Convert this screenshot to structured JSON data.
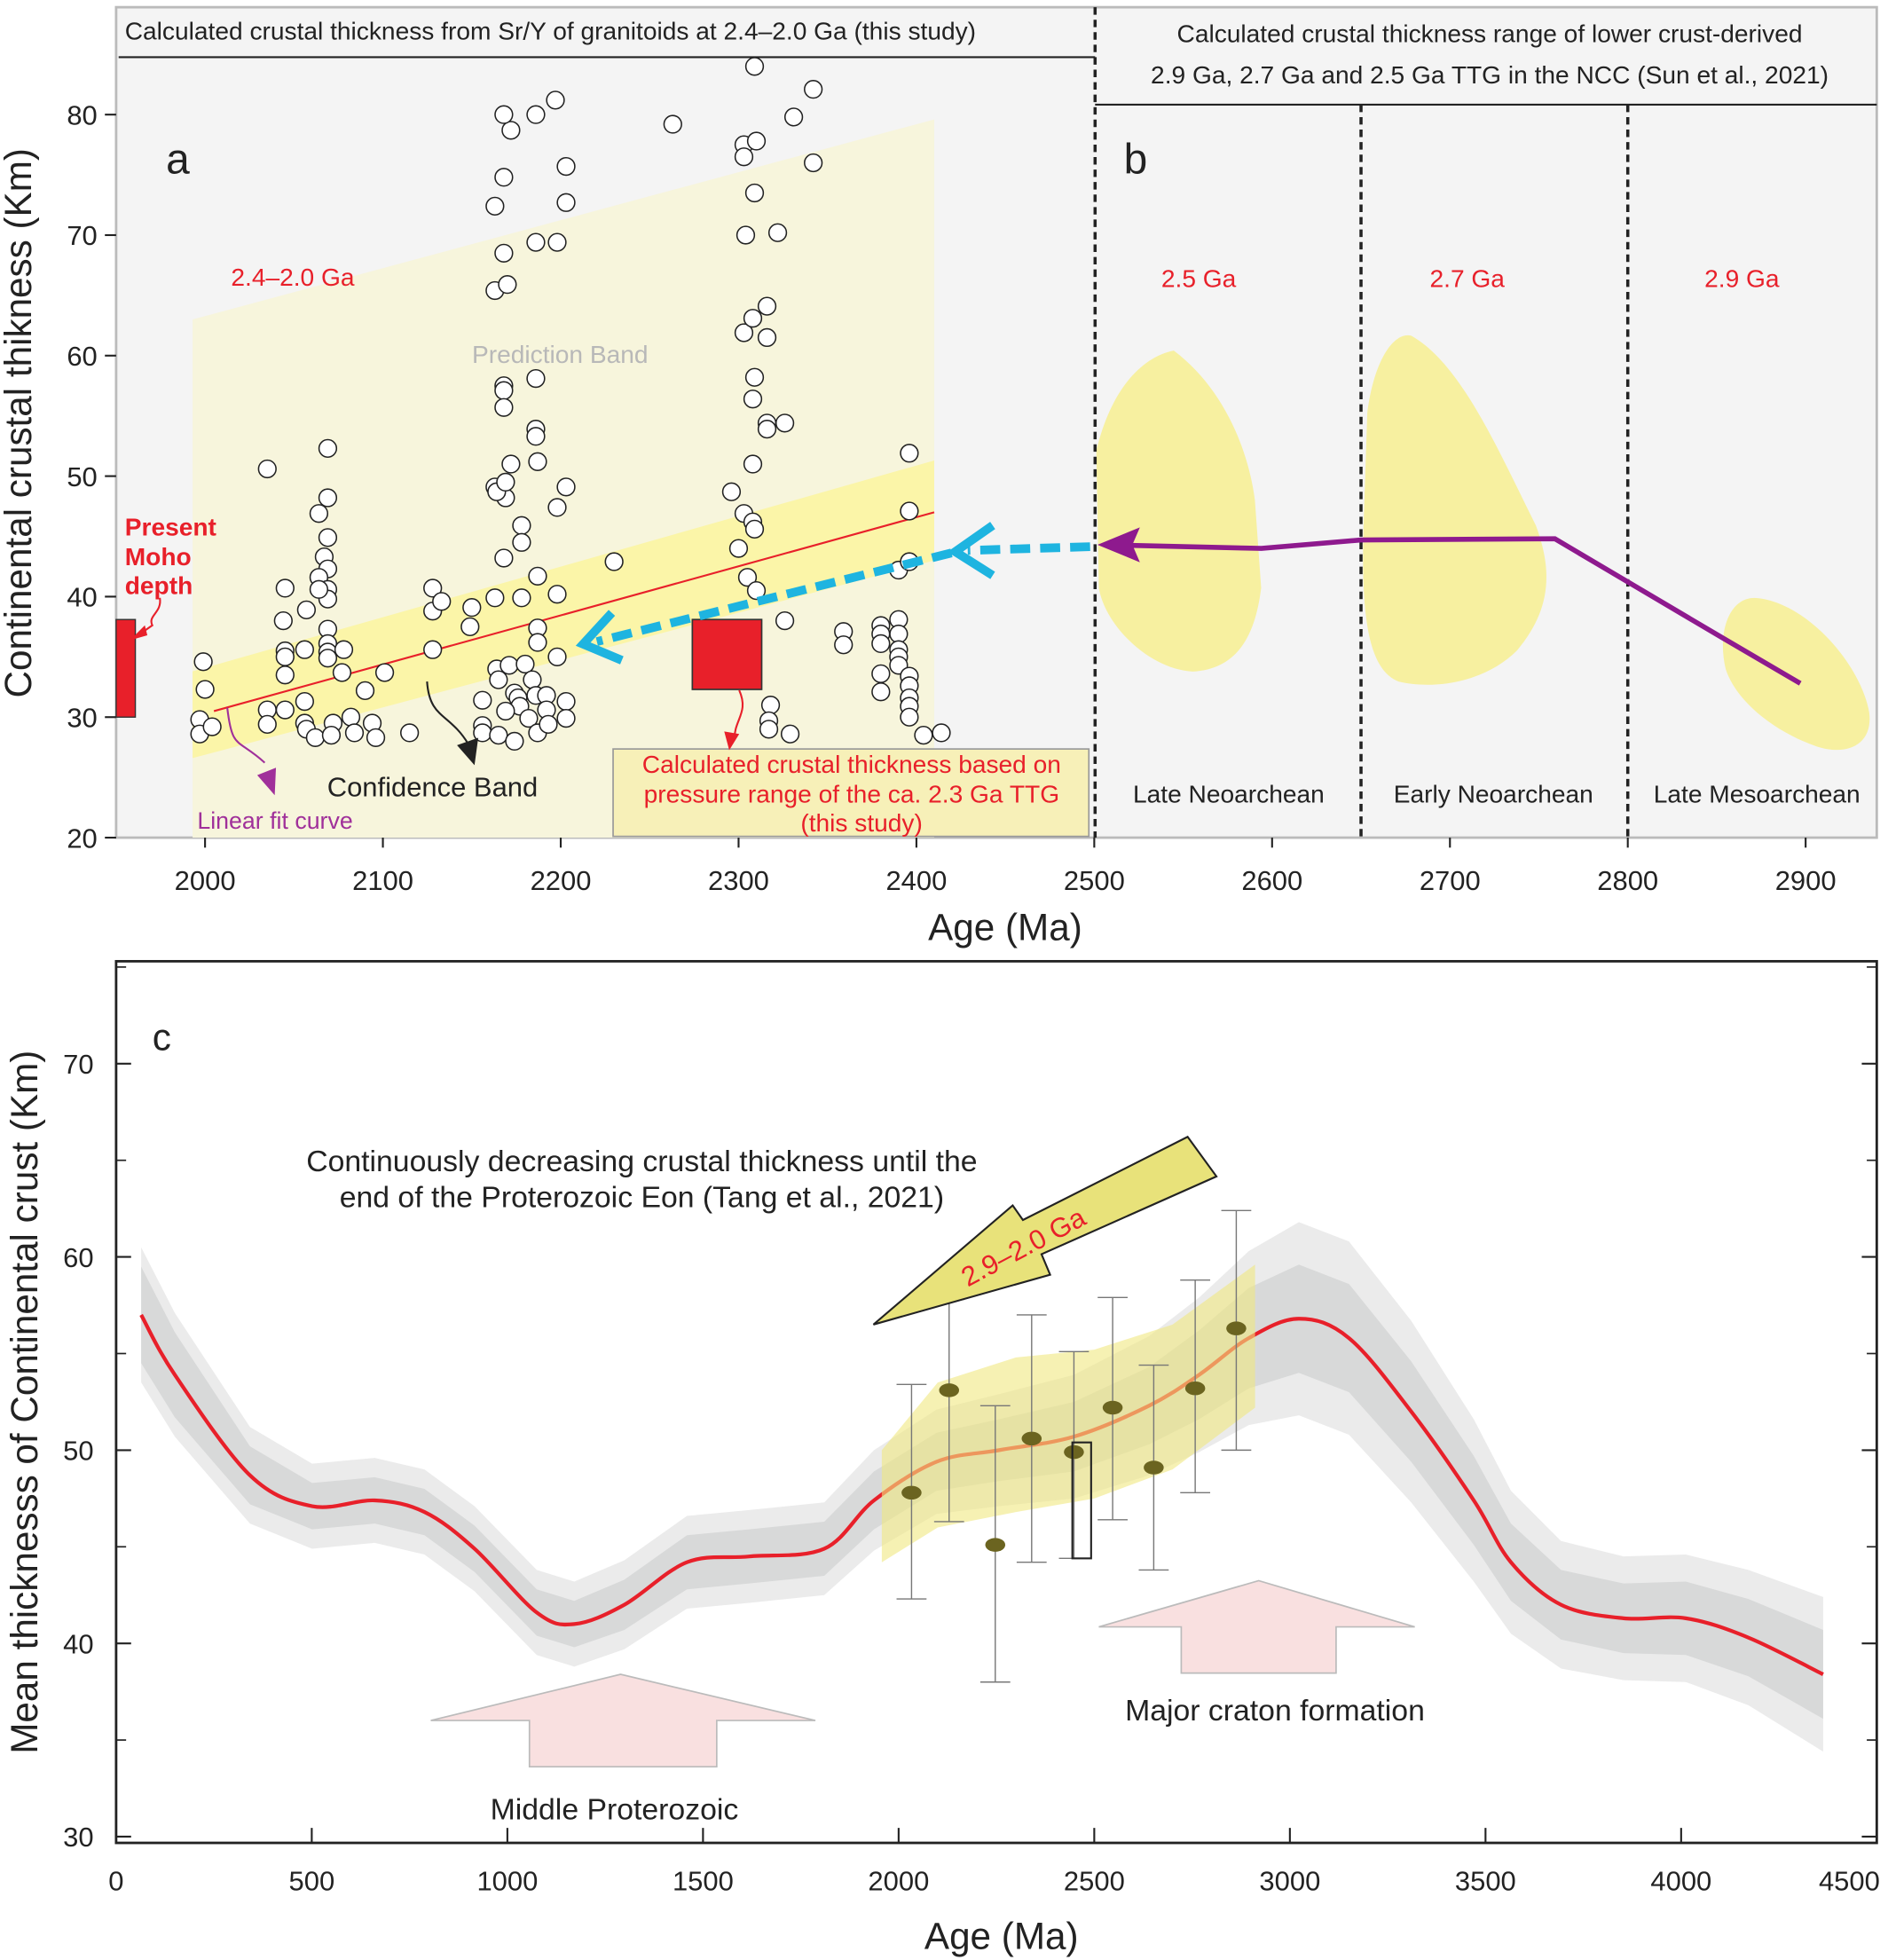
{
  "chart_data": [
    {
      "panel": "a",
      "type": "scatter",
      "header": "Calculated crustal thickness from Sr/Y of granitoids at 2.4–2.0 Ga (this study)",
      "panel_label": "a",
      "ylabel": "Continental crustal thikness (Km)",
      "xlabel": "Age (Ma)",
      "xlim": [
        1950,
        2940
      ],
      "ylim": [
        20,
        85
      ],
      "xticks": [
        2000,
        2100,
        2200,
        2300,
        2400,
        2500,
        2600,
        2700,
        2800,
        2900
      ],
      "yticks": [
        20,
        30,
        40,
        50,
        60,
        70,
        80
      ],
      "points": [
        [
          2035,
          50.6
        ],
        [
          2069,
          52.3
        ],
        [
          2069,
          48.2
        ],
        [
          2064,
          46.9
        ],
        [
          2069,
          44.9
        ],
        [
          2067,
          43.3
        ],
        [
          2069,
          42.3
        ],
        [
          2064,
          41.6
        ],
        [
          2069,
          40.6
        ],
        [
          2069,
          39.8
        ],
        [
          2064,
          40.6
        ],
        [
          2069,
          37.3
        ],
        [
          2069,
          36.1
        ],
        [
          2069,
          35.4
        ],
        [
          2069,
          34.9
        ],
        [
          2078,
          35.6
        ],
        [
          2077,
          33.7
        ],
        [
          2045,
          40.7
        ],
        [
          2044,
          38.0
        ],
        [
          2045,
          35.5
        ],
        [
          2045,
          35.0
        ],
        [
          2045,
          33.5
        ],
        [
          2057,
          38.9
        ],
        [
          2056,
          35.6
        ],
        [
          2056,
          31.3
        ],
        [
          2056,
          29.5
        ],
        [
          2057,
          29.0
        ],
        [
          2045,
          30.6
        ],
        [
          2035,
          30.6
        ],
        [
          2035,
          29.4
        ],
        [
          1999,
          34.6
        ],
        [
          2000,
          32.3
        ],
        [
          1997,
          29.8
        ],
        [
          1997,
          28.6
        ],
        [
          2004,
          29.2
        ],
        [
          2062,
          28.3
        ],
        [
          2072,
          29.5
        ],
        [
          2071,
          28.5
        ],
        [
          2082,
          30.0
        ],
        [
          2084,
          28.7
        ],
        [
          2094,
          29.5
        ],
        [
          2096,
          28.3
        ],
        [
          2090,
          32.2
        ],
        [
          2101,
          33.7
        ],
        [
          2115,
          28.7
        ],
        [
          2128,
          40.7
        ],
        [
          2128,
          38.8
        ],
        [
          2133,
          39.6
        ],
        [
          2128,
          35.6
        ],
        [
          2150,
          39.1
        ],
        [
          2149,
          37.5
        ],
        [
          2163,
          39.9
        ],
        [
          2168,
          43.2
        ],
        [
          2178,
          45.9
        ],
        [
          2178,
          44.5
        ],
        [
          2169,
          48.2
        ],
        [
          2163,
          49.1
        ],
        [
          2164,
          48.7
        ],
        [
          2169,
          49.5
        ],
        [
          2172,
          51.0
        ],
        [
          2168,
          57.5
        ],
        [
          2168,
          57.1
        ],
        [
          2168,
          55.7
        ],
        [
          2186,
          58.1
        ],
        [
          2186,
          53.9
        ],
        [
          2186,
          53.3
        ],
        [
          2187,
          51.2
        ],
        [
          2198,
          47.4
        ],
        [
          2203,
          49.1
        ],
        [
          2187,
          41.7
        ],
        [
          2198,
          40.2
        ],
        [
          2178,
          39.9
        ],
        [
          2187,
          37.4
        ],
        [
          2187,
          36.2
        ],
        [
          2198,
          35.0
        ],
        [
          2164,
          34.0
        ],
        [
          2165,
          33.1
        ],
        [
          2171,
          34.3
        ],
        [
          2180,
          34.4
        ],
        [
          2156,
          31.4
        ],
        [
          2174,
          32.0
        ],
        [
          2176,
          31.6
        ],
        [
          2184,
          33.1
        ],
        [
          2186,
          31.8
        ],
        [
          2192,
          31.8
        ],
        [
          2203,
          31.3
        ],
        [
          2192,
          30.6
        ],
        [
          2177,
          30.9
        ],
        [
          2169,
          30.5
        ],
        [
          2156,
          29.3
        ],
        [
          2156,
          28.7
        ],
        [
          2165,
          28.5
        ],
        [
          2174,
          28.0
        ],
        [
          2182,
          29.9
        ],
        [
          2187,
          28.7
        ],
        [
          2193,
          29.4
        ],
        [
          2203,
          29.9
        ],
        [
          2163,
          72.4
        ],
        [
          2168,
          74.8
        ],
        [
          2172,
          78.7
        ],
        [
          2168,
          80.0
        ],
        [
          2186,
          80.0
        ],
        [
          2197,
          81.2
        ],
        [
          2203,
          75.7
        ],
        [
          2203,
          72.7
        ],
        [
          2186,
          69.4
        ],
        [
          2198,
          69.4
        ],
        [
          2168,
          68.5
        ],
        [
          2163,
          65.4
        ],
        [
          2170,
          65.9
        ],
        [
          2230,
          42.9
        ],
        [
          2263,
          79.2
        ],
        [
          2309,
          84.0
        ],
        [
          2303,
          77.5
        ],
        [
          2303,
          76.5
        ],
        [
          2310,
          77.8
        ],
        [
          2309,
          73.5
        ],
        [
          2304,
          70.0
        ],
        [
          2322,
          70.2
        ],
        [
          2331,
          79.8
        ],
        [
          2342,
          82.1
        ],
        [
          2342,
          76.0
        ],
        [
          2303,
          61.9
        ],
        [
          2308,
          63.1
        ],
        [
          2316,
          64.1
        ],
        [
          2316,
          61.5
        ],
        [
          2309,
          58.2
        ],
        [
          2308,
          56.4
        ],
        [
          2316,
          54.4
        ],
        [
          2316,
          53.9
        ],
        [
          2326,
          54.4
        ],
        [
          2308,
          51.0
        ],
        [
          2296,
          48.7
        ],
        [
          2303,
          46.9
        ],
        [
          2308,
          46.2
        ],
        [
          2309,
          45.6
        ],
        [
          2300,
          44.0
        ],
        [
          2305,
          41.6
        ],
        [
          2310,
          40.5
        ],
        [
          2326,
          38.0
        ],
        [
          2318,
          31.0
        ],
        [
          2317,
          29.7
        ],
        [
          2317,
          29.0
        ],
        [
          2329,
          28.6
        ],
        [
          2359,
          37.1
        ],
        [
          2359,
          36.0
        ],
        [
          2380,
          37.6
        ],
        [
          2380,
          36.9
        ],
        [
          2380,
          36.1
        ],
        [
          2390,
          38.1
        ],
        [
          2390,
          36.9
        ],
        [
          2390,
          35.6
        ],
        [
          2390,
          35.0
        ],
        [
          2390,
          34.3
        ],
        [
          2396,
          33.4
        ],
        [
          2396,
          32.6
        ],
        [
          2396,
          31.6
        ],
        [
          2396,
          30.9
        ],
        [
          2396,
          30.0
        ],
        [
          2380,
          33.6
        ],
        [
          2380,
          32.1
        ],
        [
          2390,
          42.2
        ],
        [
          2396,
          42.9
        ],
        [
          2396,
          47.1
        ],
        [
          2396,
          51.9
        ],
        [
          2404,
          28.5
        ],
        [
          2414,
          28.7
        ]
      ],
      "linear_fit": [
        [
          2005,
          30.5
        ],
        [
          2410,
          47.0
        ]
      ],
      "confidence_band": {
        "x": [
          1993,
          2410
        ],
        "upper": [
          33.8,
          51.3
        ],
        "lower": [
          26.6,
          43.0
        ]
      },
      "prediction_band": {
        "x": [
          1993,
          2410
        ],
        "upper": [
          63.0,
          79.6
        ],
        "lower": [
          20,
          20
        ]
      },
      "ttg_pressure_box": {
        "age": [
          2274,
          2313
        ],
        "thickness": [
          32.3,
          38.1
        ]
      },
      "moho_bar": {
        "age": [
          1950,
          1958
        ],
        "thickness": [
          30,
          38.1
        ]
      },
      "annotations": {
        "range_label": "2.4–2.0 Ga",
        "prediction": "Prediction Band",
        "confidence": "Confidence Band",
        "fit": "Linear fit curve",
        "moho": [
          "Present",
          "Moho",
          "depth"
        ],
        "ttg_box": [
          "Calculated crustal thickness based on",
          "pressure range of the ca. 2.3 Ga  TTG",
          "(this study)"
        ]
      }
    },
    {
      "panel": "b",
      "type": "area",
      "header": [
        "Calculated crustal thickness range of lower crust-derived",
        "2.9 Ga, 2.7 Ga and 2.5 Ga TTG in the NCC (Sun et al., 2021)"
      ],
      "panel_label": "b",
      "dividers": [
        2650,
        2800
      ],
      "fields": [
        {
          "label": "2.5 Ga",
          "era": "Late Neoarchean"
        },
        {
          "label": "2.7 Ga",
          "era": "Early Neoarchean"
        },
        {
          "label": "2.9 Ga",
          "era": "Late Mesoarchean"
        }
      ],
      "trend_line": [
        [
          2506,
          44.3
        ],
        [
          2594,
          44.0
        ],
        [
          2650,
          44.7
        ],
        [
          2759,
          44.8
        ],
        [
          2853,
          36.6
        ],
        [
          2897,
          32.8
        ]
      ],
      "colors": {
        "field": "#f7f0a0",
        "trend": "#8e1a8e",
        "arrow": "#1eb4e0"
      }
    },
    {
      "panel": "c",
      "type": "line",
      "panel_label": "c",
      "ylabel": "Mean thicknesss of Continental crust (Km)",
      "xlabel": "Age (Ma)",
      "xlim": [
        0,
        4500
      ],
      "ylim": [
        30,
        75
      ],
      "xticks": [
        0,
        500,
        1000,
        1500,
        2000,
        2500,
        3000,
        3500,
        4000,
        4500
      ],
      "yticks": [
        30,
        40,
        50,
        60,
        70
      ],
      "curve": {
        "x": [
          64,
          150,
          342,
          501,
          661,
          788,
          916,
          1075,
          1171,
          1299,
          1459,
          1618,
          1810,
          1937,
          2097,
          2257,
          2448,
          2640,
          2768,
          2895,
          3023,
          3151,
          3310,
          3470,
          3565,
          3693,
          3853,
          4012,
          4172,
          4363
        ],
        "y": [
          57.0,
          53.9,
          48.7,
          47.1,
          47.4,
          46.8,
          44.9,
          41.6,
          41.0,
          42.0,
          44.2,
          44.5,
          44.9,
          47.4,
          49.4,
          50.0,
          50.7,
          52.3,
          53.9,
          55.8,
          56.8,
          55.8,
          52.0,
          47.4,
          44.2,
          42.0,
          41.3,
          41.3,
          40.3,
          38.4
        ],
        "inner_halfwidth": [
          2.5,
          2.2,
          1.5,
          1.2,
          1.2,
          1.2,
          1.2,
          1.2,
          1.2,
          1.3,
          1.4,
          1.4,
          1.4,
          1.5,
          1.5,
          1.6,
          1.8,
          2,
          2.3,
          2.6,
          2.8,
          2.8,
          2.6,
          2.3,
          2.0,
          1.8,
          1.8,
          1.9,
          2.0,
          2.3
        ],
        "outer_halfwidth": [
          3.5,
          3.2,
          2.5,
          2.2,
          2.2,
          2.2,
          2.2,
          2.2,
          2.2,
          2.3,
          2.4,
          2.4,
          2.4,
          2.6,
          2.7,
          2.9,
          3.2,
          3.6,
          4.0,
          4.5,
          5.0,
          5.0,
          4.7,
          4.2,
          3.7,
          3.3,
          3.2,
          3.3,
          3.5,
          4.0
        ]
      },
      "samples": [
        {
          "age": 2033,
          "mean": 47.8,
          "low": 42.3,
          "high": 53.4
        },
        {
          "age": 2129,
          "mean": 53.1,
          "low": 46.3,
          "high": 57.8
        },
        {
          "age": 2247,
          "mean": 45.1,
          "low": 38.0,
          "high": 52.3
        },
        {
          "age": 2340,
          "mean": 50.6,
          "low": 44.2,
          "high": 57.0
        },
        {
          "age": 2448,
          "mean": 49.9,
          "low": 44.4,
          "high": 55.1
        },
        {
          "age": 2547,
          "mean": 52.2,
          "low": 46.4,
          "high": 57.9
        },
        {
          "age": 2652,
          "mean": 49.1,
          "low": 43.8,
          "high": 54.4
        },
        {
          "age": 2758,
          "mean": 53.2,
          "low": 47.8,
          "high": 58.8
        },
        {
          "age": 2863,
          "mean": 56.3,
          "low": 50.0,
          "high": 62.4
        }
      ],
      "box": {
        "age": [
          2444,
          2492
        ],
        "thickness": [
          44.4,
          50.4
        ]
      },
      "yellow_band": {
        "x": [
          1957,
          2100,
          2300,
          2500,
          2700,
          2911
        ],
        "upper": [
          50.0,
          53.5,
          54.8,
          55.2,
          56.5,
          59.6
        ],
        "lower": [
          44.2,
          46.0,
          46.8,
          47.5,
          49.0,
          52.2
        ]
      },
      "annotations": {
        "trend": [
          "Continuously decreasing crustal thickness until the",
          "end of the Proterozoic Eon (Tang et al., 2021)"
        ],
        "arrow_label": "2.9–2.0 Ga",
        "middle": "Middle Proterozoic",
        "craton": "Major craton formation"
      },
      "colors": {
        "curve": "#e8202a",
        "curve_highlight": "#f07020",
        "band_inner": "#d8d9d9",
        "band_outer": "#ebebeb",
        "yellow": "#f0e880",
        "pink": "#f9e0e0"
      }
    }
  ]
}
